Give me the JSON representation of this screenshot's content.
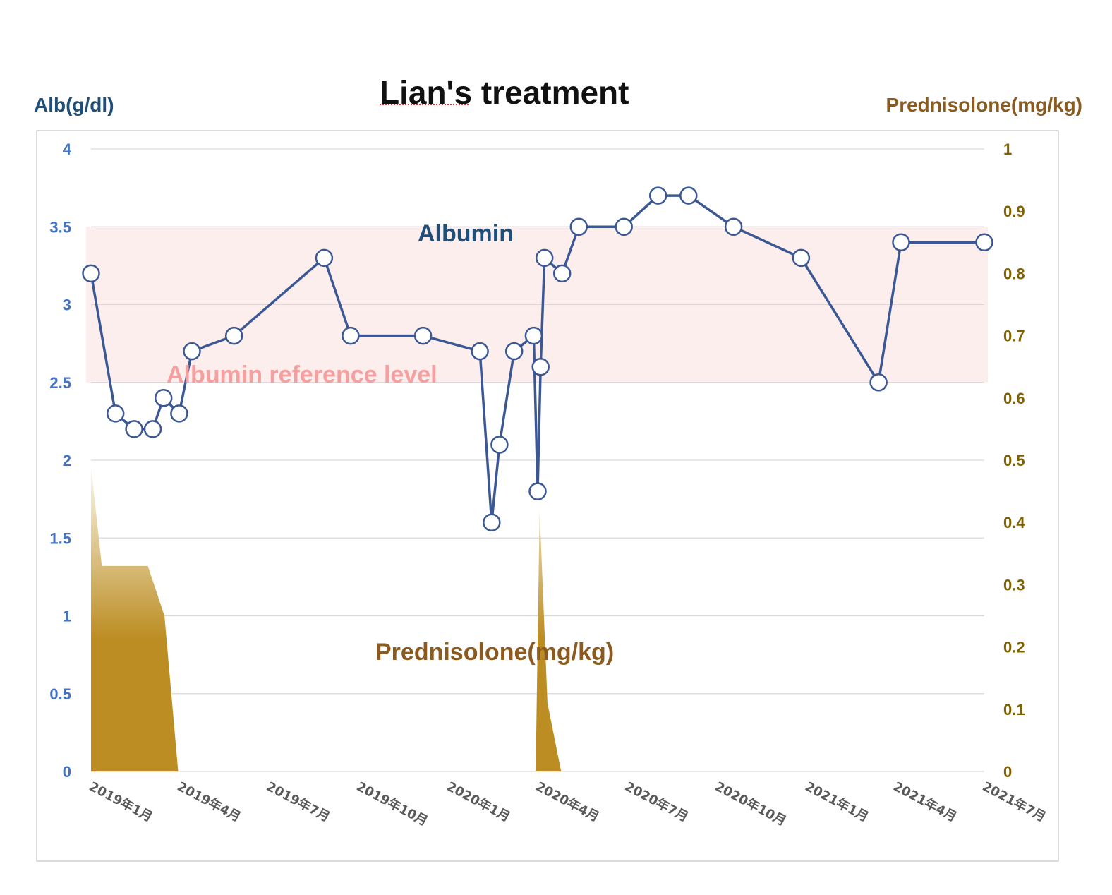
{
  "chart_data": {
    "type": "line",
    "title": "Lian's treatment",
    "y_left_label": "Alb(g/dl)",
    "y_right_label": "Prednisolone(mg/kg)",
    "y_left_ticks": [
      "0",
      "0.5",
      "1",
      "1.5",
      "2",
      "2.5",
      "3",
      "3.5",
      "4"
    ],
    "y_right_ticks": [
      "0",
      "0.1",
      "0.2",
      "0.3",
      "0.4",
      "0.5",
      "0.6",
      "0.7",
      "0.8",
      "0.9",
      "1"
    ],
    "ylim_left": [
      0,
      4
    ],
    "ylim_right": [
      0,
      1
    ],
    "x_tick_labels": [
      "2019年1月",
      "2019年4月",
      "2019年7月",
      "2019年10月",
      "2020年1月",
      "2020年4月",
      "2020年7月",
      "2020年10月",
      "2021年1月",
      "2021年4月",
      "2021年7月"
    ],
    "x_tick_dates": [
      "2019-01-01",
      "2019-04-01",
      "2019-07-01",
      "2019-10-01",
      "2020-01-01",
      "2020-04-01",
      "2020-07-01",
      "2020-10-01",
      "2021-01-01",
      "2021-04-01",
      "2021-07-01"
    ],
    "xlim": [
      "2019-01-01",
      "2021-07-01"
    ],
    "grid": true,
    "reference_band": {
      "label": "Albumin reference level",
      "y_range": [
        2.5,
        3.5
      ],
      "color": "#fdeeee",
      "label_color": "#f4a0a0"
    },
    "series": [
      {
        "name": "Albumin",
        "axis": "left",
        "type": "line",
        "color": "#3b5894",
        "marker": "hollow-circle",
        "points": [
          {
            "x": "2019-01-01",
            "y": 3.2
          },
          {
            "x": "2019-01-26",
            "y": 2.3
          },
          {
            "x": "2019-02-14",
            "y": 2.2
          },
          {
            "x": "2019-03-05",
            "y": 2.2
          },
          {
            "x": "2019-03-16",
            "y": 2.4
          },
          {
            "x": "2019-04-01",
            "y": 2.3
          },
          {
            "x": "2019-04-14",
            "y": 2.7
          },
          {
            "x": "2019-05-27",
            "y": 2.8
          },
          {
            "x": "2019-08-27",
            "y": 3.3
          },
          {
            "x": "2019-09-23",
            "y": 2.8
          },
          {
            "x": "2019-12-06",
            "y": 2.8
          },
          {
            "x": "2020-02-02",
            "y": 2.7
          },
          {
            "x": "2020-02-14",
            "y": 1.6
          },
          {
            "x": "2020-02-22",
            "y": 2.1
          },
          {
            "x": "2020-03-08",
            "y": 2.7
          },
          {
            "x": "2020-03-28",
            "y": 2.8
          },
          {
            "x": "2020-04-01",
            "y": 1.8
          },
          {
            "x": "2020-04-04",
            "y": 2.6
          },
          {
            "x": "2020-04-08",
            "y": 3.3
          },
          {
            "x": "2020-04-26",
            "y": 3.2
          },
          {
            "x": "2020-05-13",
            "y": 3.5
          },
          {
            "x": "2020-06-28",
            "y": 3.5
          },
          {
            "x": "2020-08-02",
            "y": 3.7
          },
          {
            "x": "2020-09-02",
            "y": 3.7
          },
          {
            "x": "2020-10-18",
            "y": 3.5
          },
          {
            "x": "2020-12-26",
            "y": 3.3
          },
          {
            "x": "2021-03-15",
            "y": 2.5
          },
          {
            "x": "2021-04-07",
            "y": 3.4
          },
          {
            "x": "2021-07-01",
            "y": 3.4
          }
        ]
      },
      {
        "name": "Prednisolone(mg/kg)",
        "axis": "right",
        "type": "area",
        "color": "#bc8d22",
        "gradient_top_color": "#fdfbf2",
        "points": [
          {
            "x": "2019-01-01",
            "y": 0.49
          },
          {
            "x": "2019-01-12",
            "y": 0.33
          },
          {
            "x": "2019-02-28",
            "y": 0.33
          },
          {
            "x": "2019-03-17",
            "y": 0.25
          },
          {
            "x": "2019-03-31",
            "y": 0
          },
          {
            "x": "2020-03-30",
            "y": 0
          },
          {
            "x": "2020-04-03",
            "y": 0.42
          },
          {
            "x": "2020-04-11",
            "y": 0.11
          },
          {
            "x": "2020-04-25",
            "y": 0
          }
        ]
      }
    ],
    "annotations": [
      {
        "text": "Albumin",
        "color": "#1f4e79"
      },
      {
        "text": "Albumin reference level",
        "color": "#f4a0a0"
      },
      {
        "text": "Prednisolone(mg/kg)",
        "color": "#8a5a1e"
      }
    ],
    "colors": {
      "left_axis": "#4472c4",
      "left_axis_title": "#1f4e79",
      "right_axis": "#7f6000",
      "right_axis_title": "#8a5a1e",
      "grid": "#d9d9d9",
      "frame": "#d0d0d0"
    }
  }
}
